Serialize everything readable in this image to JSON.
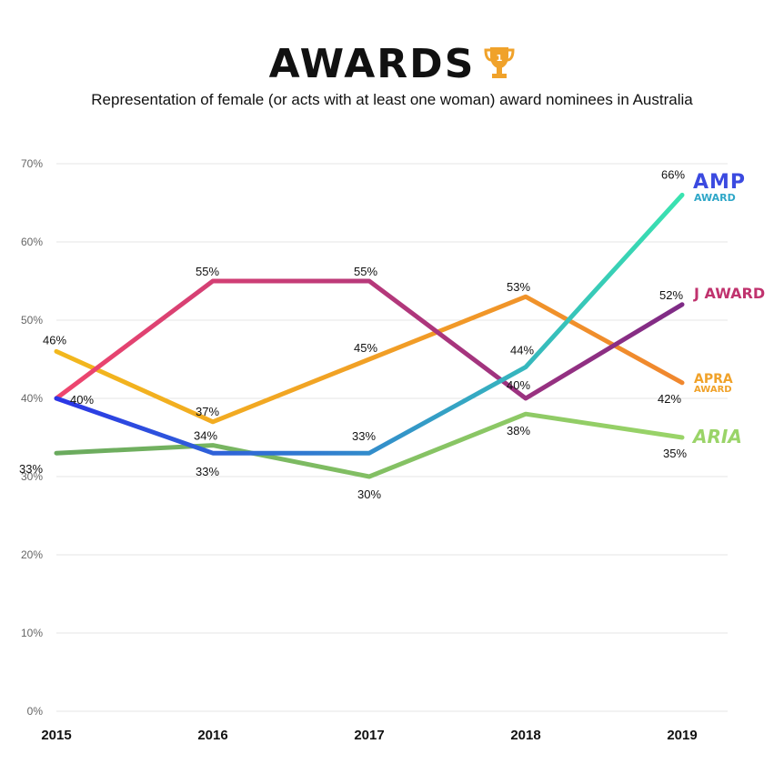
{
  "title": "AWARDS",
  "subtitle": "Representation of female (or acts with at least one woman) award nominees in Australia",
  "trophy_icon": "trophy-icon",
  "chart_data": {
    "type": "line",
    "x": [
      "2015",
      "2016",
      "2017",
      "2018",
      "2019"
    ],
    "ylim": [
      0,
      70
    ],
    "yticks": [
      0,
      10,
      20,
      30,
      40,
      50,
      60,
      70
    ],
    "ytick_labels": [
      "0%",
      "10%",
      "20%",
      "30%",
      "40%",
      "50%",
      "60%",
      "70%"
    ],
    "grid": true,
    "series": [
      {
        "name": "ARIA",
        "key": "aria",
        "values": [
          33,
          34,
          30,
          38,
          35
        ],
        "labels": [
          "33%",
          "34%",
          "30%",
          "38%",
          "35%"
        ],
        "colors": [
          "#6aaa5e",
          "#9ad468"
        ]
      },
      {
        "name": "APRA AWARD",
        "key": "apra",
        "values": [
          46,
          37,
          45,
          53,
          42
        ],
        "labels": [
          "46%",
          "37%",
          "45%",
          "53%",
          "42%"
        ],
        "colors": [
          "#f2b81d",
          "#f0872e"
        ]
      },
      {
        "name": "J AWARD",
        "key": "jaward",
        "values": [
          40,
          55,
          55,
          40,
          52
        ],
        "labels": [
          "40%",
          "55%",
          "55%",
          "40%",
          "52%"
        ],
        "colors": [
          "#f0466e",
          "#7e2b86"
        ]
      },
      {
        "name": "AMP AWARD",
        "key": "amp",
        "values": [
          40,
          33,
          33,
          44,
          66
        ],
        "labels": [
          "40%",
          "33%",
          "33%",
          "44%",
          "66%"
        ],
        "colors": [
          "#2b35e6",
          "#3ae3b0"
        ]
      }
    ]
  },
  "legend": {
    "amp_line1": "AMP",
    "amp_line2": "AWARD",
    "jaward": "J AWARD",
    "apra_line1": "APRA",
    "apra_line2": "AWARD",
    "aria": "ARIA",
    "amp_color": "#3b4ae0",
    "jaward_color": "#c0336e",
    "apra_color": "#f0a22a",
    "aria_color": "#9ad468"
  }
}
